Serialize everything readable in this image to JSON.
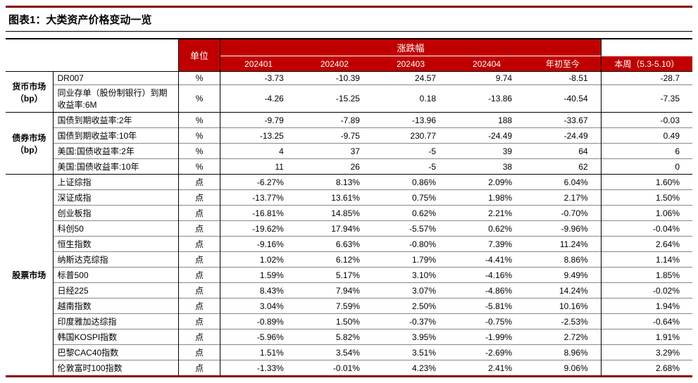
{
  "title": "图表1：大类资产价格变动一览",
  "colors": {
    "header_bg": "#c00000",
    "header_fg": "#ffffff",
    "rule_dark": "#8b0000",
    "border": "#000000",
    "row_border": "#888888",
    "text": "#000000",
    "bg": "#ffffff"
  },
  "typography": {
    "title_fontsize": 15,
    "body_fontsize": 12,
    "font_family": "Microsoft YaHei / SimSun"
  },
  "header": {
    "unit_label": "单位",
    "change_label": "涨跌幅",
    "periods": [
      "202401",
      "202402",
      "202403",
      "202404",
      "年初至今"
    ],
    "week_label": "本周（5.3-5.10）"
  },
  "sections": [
    {
      "group": "货币市场（bp）",
      "rows": [
        {
          "label": "DR007",
          "unit": "%",
          "v": [
            "-3.73",
            "-10.39",
            "24.57",
            "9.74",
            "-8.51",
            "-28.7"
          ]
        },
        {
          "label": "同业存单（股份制银行）到期收益率:6M",
          "unit": "%",
          "v": [
            "-4.26",
            "-15.25",
            "0.18",
            "-13.86",
            "-40.54",
            "-7.35"
          ]
        }
      ]
    },
    {
      "group": "债券市场（bp）",
      "rows": [
        {
          "label": "国债到期收益率:2年",
          "unit": "%",
          "v": [
            "-9.79",
            "-7.89",
            "-13.96",
            "188",
            "-33.67",
            "-0.03"
          ]
        },
        {
          "label": "国债到期收益率:10年",
          "unit": "%",
          "v": [
            "-13.25",
            "-9.75",
            "230.77",
            "-24.49",
            "-24.49",
            "0.49"
          ]
        },
        {
          "label": "美国:国债收益率:2年",
          "unit": "%",
          "v": [
            "4",
            "37",
            "-5",
            "39",
            "64",
            "6"
          ]
        },
        {
          "label": "美国:国债收益率:10年",
          "unit": "%",
          "v": [
            "11",
            "26",
            "-5",
            "38",
            "62",
            "0"
          ]
        }
      ]
    },
    {
      "group": "股票市场",
      "rows": [
        {
          "label": "上证综指",
          "unit": "点",
          "v": [
            "-6.27%",
            "8.13%",
            "0.86%",
            "2.09%",
            "6.04%",
            "1.60%"
          ]
        },
        {
          "label": "深证成指",
          "unit": "点",
          "v": [
            "-13.77%",
            "13.61%",
            "0.75%",
            "1.98%",
            "2.17%",
            "1.50%"
          ]
        },
        {
          "label": "创业板指",
          "unit": "点",
          "v": [
            "-16.81%",
            "14.85%",
            "0.62%",
            "2.21%",
            "-0.70%",
            "1.06%"
          ]
        },
        {
          "label": "科创50",
          "unit": "点",
          "v": [
            "-19.62%",
            "17.94%",
            "-5.57%",
            "0.62%",
            "-9.96%",
            "-0.04%"
          ]
        },
        {
          "label": "恒生指数",
          "unit": "点",
          "v": [
            "-9.16%",
            "6.63%",
            "-0.80%",
            "7.39%",
            "11.24%",
            "2.64%"
          ]
        },
        {
          "label": "纳斯达克综指",
          "unit": "点",
          "v": [
            "1.02%",
            "6.12%",
            "1.79%",
            "-4.41%",
            "8.86%",
            "1.14%"
          ]
        },
        {
          "label": "标普500",
          "unit": "点",
          "v": [
            "1.59%",
            "5.17%",
            "3.10%",
            "-4.16%",
            "9.49%",
            "1.85%"
          ]
        },
        {
          "label": "日经225",
          "unit": "点",
          "v": [
            "8.43%",
            "7.94%",
            "3.07%",
            "-4.86%",
            "14.24%",
            "-0.02%"
          ]
        },
        {
          "label": "越南指数",
          "unit": "点",
          "v": [
            "3.04%",
            "7.59%",
            "2.50%",
            "-5.81%",
            "10.16%",
            "1.94%"
          ]
        },
        {
          "label": "印度雅加达综指",
          "unit": "点",
          "v": [
            "-0.89%",
            "1.50%",
            "-0.37%",
            "-0.75%",
            "-2.53%",
            "-0.64%"
          ]
        },
        {
          "label": "韩国KOSPI指数",
          "unit": "点",
          "v": [
            "-5.96%",
            "5.82%",
            "3.95%",
            "-1.99%",
            "2.72%",
            "1.91%"
          ]
        },
        {
          "label": "巴黎CAC40指数",
          "unit": "点",
          "v": [
            "1.51%",
            "3.54%",
            "3.51%",
            "-2.69%",
            "8.96%",
            "3.29%"
          ]
        },
        {
          "label": "伦敦富时100指数",
          "unit": "点",
          "v": [
            "-1.33%",
            "-0.01%",
            "4.23%",
            "2.41%",
            "9.06%",
            "2.68%"
          ]
        }
      ]
    }
  ]
}
